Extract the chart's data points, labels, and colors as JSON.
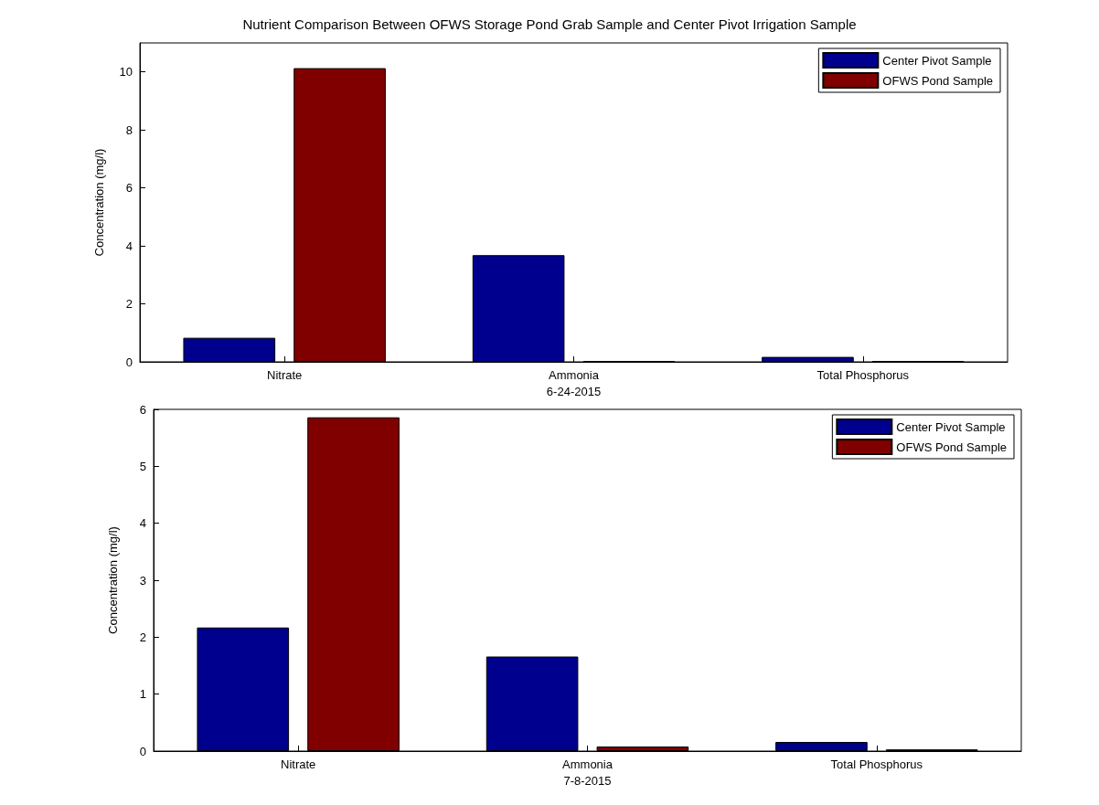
{
  "chart_data": [
    {
      "type": "bar",
      "title": "Nutrient Comparison Between OFWS Storage Pond Grab Sample and Center Pivot Irrigation Sample",
      "xlabel": "6-24-2015",
      "ylabel": "Concentration (mg/l)",
      "categories": [
        "Nitrate",
        "Ammonia",
        "Total Phosphorus"
      ],
      "series": [
        {
          "name": "Center Pivot Sample",
          "color": "#00008f",
          "values": [
            0.83,
            3.68,
            0.17
          ]
        },
        {
          "name": "OFWS Pond Sample",
          "color": "#800000",
          "values": [
            10.13,
            0.03,
            0.03
          ]
        }
      ],
      "ylim": [
        0,
        11
      ],
      "yticks": [
        0,
        2,
        4,
        6,
        8,
        10
      ],
      "grid": false,
      "legend": "top right"
    },
    {
      "type": "bar",
      "xlabel": "7-8-2015",
      "ylabel": "Concentration (mg/l)",
      "categories": [
        "Nitrate",
        "Ammonia",
        "Total Phosphorus"
      ],
      "series": [
        {
          "name": "Center Pivot Sample",
          "color": "#00008f",
          "values": [
            2.17,
            1.66,
            0.16
          ]
        },
        {
          "name": "OFWS Pond Sample",
          "color": "#800000",
          "values": [
            5.86,
            0.08,
            0.03
          ]
        }
      ],
      "ylim": [
        0,
        6
      ],
      "yticks": [
        0,
        1,
        2,
        3,
        4,
        5,
        6
      ],
      "grid": false,
      "legend": "top right"
    }
  ]
}
